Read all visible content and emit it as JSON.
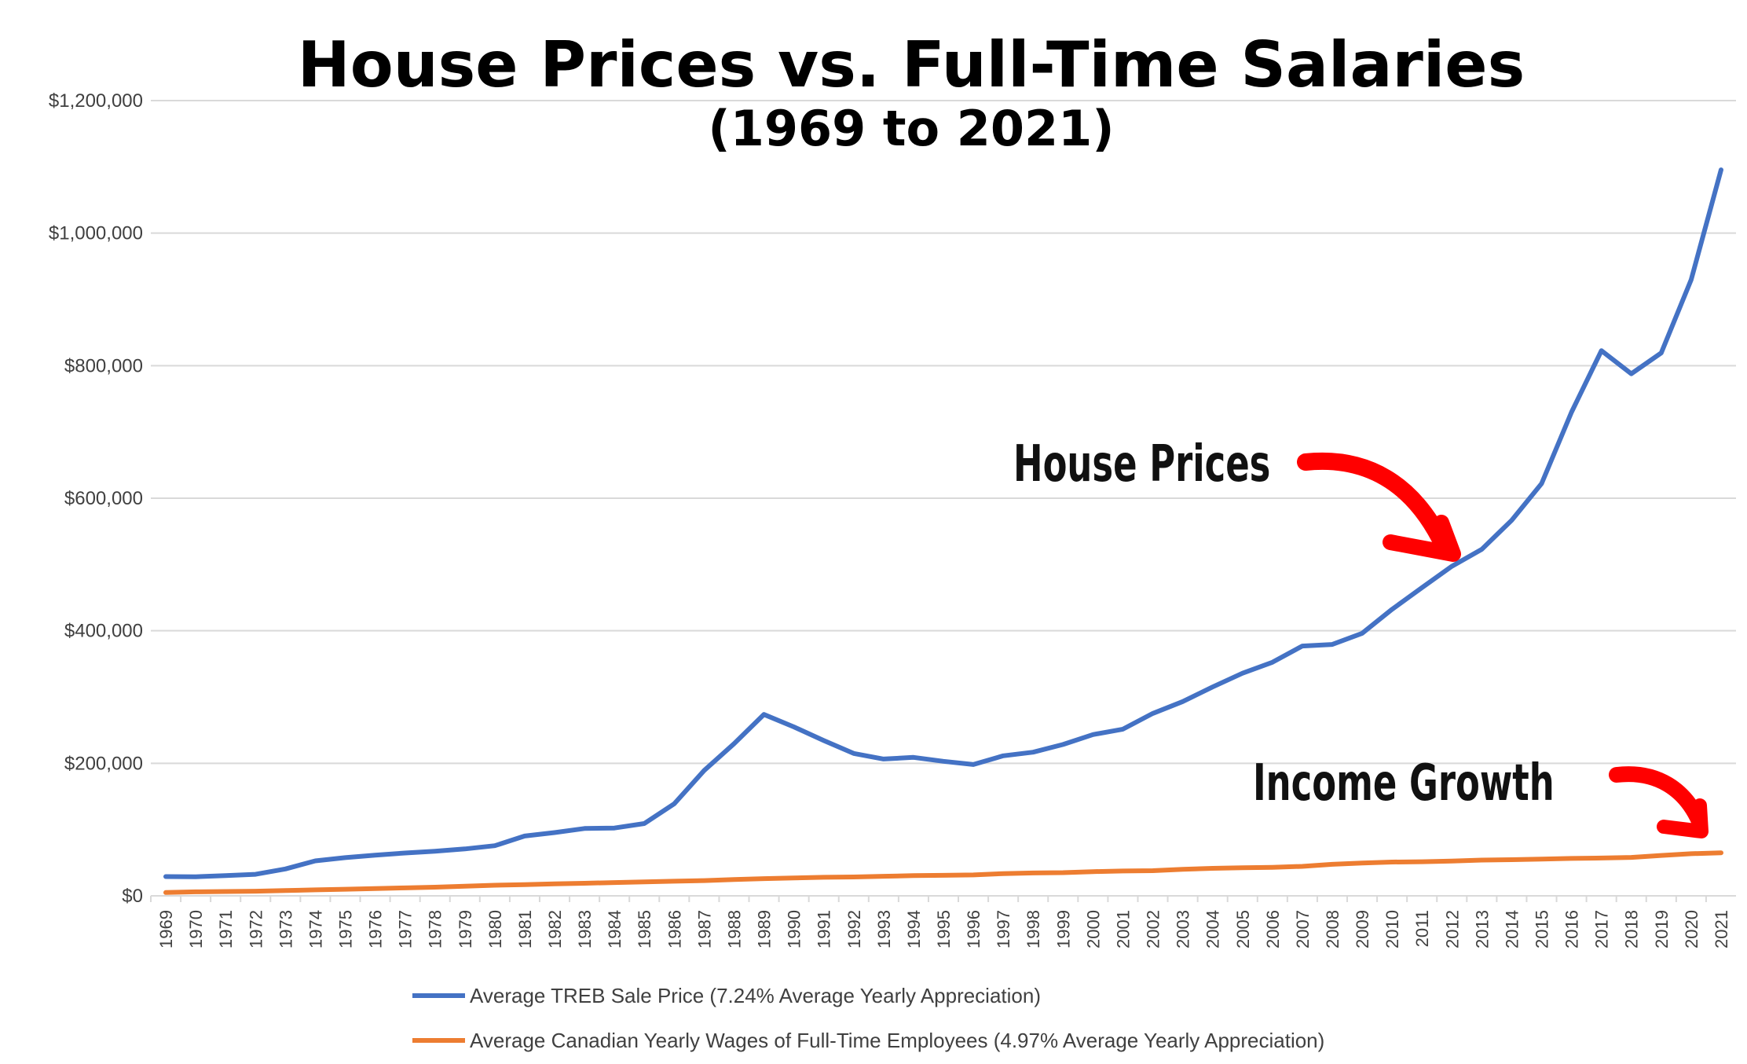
{
  "chart_data": {
    "type": "line",
    "title": "House Prices vs. Full-Time Salaries",
    "subtitle": "(1969 to 2021)",
    "xlabel": "",
    "ylabel": "",
    "ylim": [
      0,
      1200000
    ],
    "yticks": [
      0,
      200000,
      400000,
      600000,
      800000,
      1000000,
      1200000
    ],
    "ytick_labels": [
      "$0",
      "$200,000",
      "$400,000",
      "$600,000",
      "$800,000",
      "$1,000,000",
      "$1,200,000"
    ],
    "grid": true,
    "legend_position": "bottom",
    "x": [
      "1969",
      "1970",
      "1971",
      "1972",
      "1973",
      "1974",
      "1975",
      "1976",
      "1977",
      "1978",
      "1979",
      "1980",
      "1981",
      "1982",
      "1983",
      "1984",
      "1985",
      "1986",
      "1987",
      "1988",
      "1989",
      "1990",
      "1991",
      "1992",
      "1993",
      "1994",
      "1995",
      "1996",
      "1997",
      "1998",
      "1999",
      "2000",
      "2001",
      "2002",
      "2003",
      "2004",
      "2005",
      "2006",
      "2007",
      "2008",
      "2009",
      "2010",
      "2011",
      "2012",
      "2013",
      "2014",
      "2015",
      "2016",
      "2017",
      "2018",
      "2019",
      "2020",
      "2021"
    ],
    "series": [
      {
        "name": "Average TREB Sale Price (7.24% Average Yearly Appreciation)",
        "color": "#4472C4",
        "values": [
          29000,
          28800,
          30500,
          32500,
          40600,
          52800,
          57600,
          61400,
          64600,
          67300,
          70800,
          75700,
          90200,
          95500,
          101600,
          102300,
          109100,
          138900,
          189100,
          229600,
          273700,
          255000,
          234300,
          214900,
          206500,
          208900,
          203000,
          198200,
          211300,
          216800,
          228400,
          243300,
          251500,
          275200,
          293100,
          315200,
          335900,
          352400,
          377000,
          379300,
          396200,
          432300,
          465000,
          497300,
          522900,
          566700,
          622100,
          729800,
          822700,
          787800,
          819300,
          929600,
          1095500
        ]
      },
      {
        "name": "Average Canadian Yearly Wages of Full-Time Employees (4.97% Average Yearly Appreciation)",
        "color": "#ED7D31",
        "values": [
          5000,
          6000,
          6500,
          7000,
          8000,
          9000,
          10000,
          11000,
          12000,
          13000,
          14500,
          16000,
          17000,
          18000,
          19000,
          20000,
          21000,
          22000,
          23000,
          24500,
          26000,
          27000,
          28000,
          28500,
          29500,
          30500,
          31000,
          31500,
          33500,
          34500,
          35000,
          36500,
          37500,
          38000,
          40000,
          41500,
          42500,
          43000,
          44500,
          47500,
          49500,
          51000,
          51500,
          52500,
          54000,
          54500,
          55500,
          56500,
          57000,
          58000,
          61000,
          63500,
          65000
        ]
      }
    ],
    "annotations": [
      {
        "text": "House Prices",
        "color": "#FF0000"
      },
      {
        "text": "Income Growth",
        "color": "#FF0000"
      }
    ]
  }
}
